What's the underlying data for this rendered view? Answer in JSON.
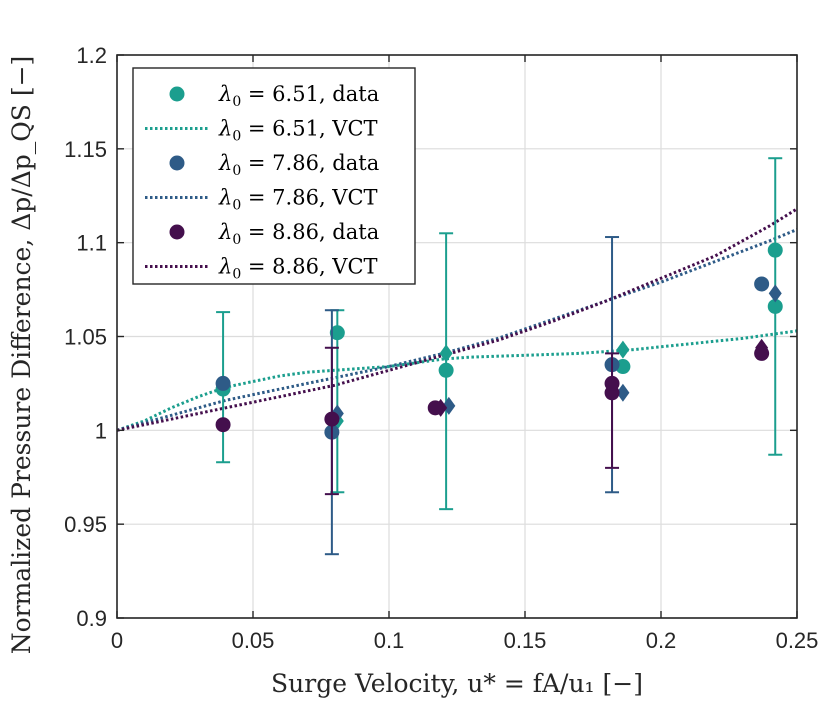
{
  "chart_data": {
    "type": "scatter",
    "xlabel": "Surge Velocity, u* = fA/u₁ [−]",
    "ylabel": "Normalized Pressure Difference, Δp/Δp_QS [−]",
    "xlim": [
      0,
      0.25
    ],
    "ylim": [
      0.9,
      1.2
    ],
    "xticks": [
      0,
      0.05,
      0.1,
      0.15,
      0.2,
      0.25
    ],
    "yticks": [
      0.9,
      0.95,
      1.0,
      1.05,
      1.1,
      1.15,
      1.2
    ],
    "xtick_labels": [
      "0",
      "0.05",
      "0.1",
      "0.15",
      "0.2",
      "0.25"
    ],
    "ytick_labels": [
      "0.9",
      "0.95",
      "1",
      "1.05",
      "1.1",
      "1.15",
      "1.2"
    ],
    "grid": true,
    "legend_position": "top-left",
    "series": [
      {
        "name": "λ0 = 6.51, data",
        "color": "#1b9e8e",
        "circles": [
          [
            0.039,
            1.022
          ],
          [
            0.081,
            1.052
          ],
          [
            0.121,
            1.032
          ],
          [
            0.186,
            1.034
          ],
          [
            0.242,
            1.066
          ],
          [
            0.242,
            1.096
          ]
        ],
        "diamonds": [
          [
            0.081,
            1.005
          ],
          [
            0.121,
            1.041
          ],
          [
            0.186,
            1.043
          ]
        ],
        "errorbars": [
          [
            0.039,
            0.983,
            1.063
          ],
          [
            0.081,
            0.967,
            1.064
          ],
          [
            0.121,
            0.958,
            1.105
          ],
          [
            0.242,
            0.987,
            1.145
          ]
        ]
      },
      {
        "name": "λ0 = 6.51, VCT",
        "color": "#1b9e8e",
        "line": [
          [
            0,
            1.0
          ],
          [
            0.01,
            1.005
          ],
          [
            0.02,
            1.012
          ],
          [
            0.03,
            1.018
          ],
          [
            0.04,
            1.023
          ],
          [
            0.05,
            1.026
          ],
          [
            0.06,
            1.029
          ],
          [
            0.07,
            1.031
          ],
          [
            0.08,
            1.032
          ],
          [
            0.09,
            1.033
          ],
          [
            0.1,
            1.034
          ],
          [
            0.11,
            1.036
          ],
          [
            0.12,
            1.038
          ],
          [
            0.13,
            1.039
          ],
          [
            0.15,
            1.04
          ],
          [
            0.17,
            1.041
          ],
          [
            0.19,
            1.043
          ],
          [
            0.21,
            1.046
          ],
          [
            0.23,
            1.049
          ],
          [
            0.25,
            1.053
          ]
        ]
      },
      {
        "name": "λ0 = 7.86, data",
        "color": "#2e5b87",
        "circles": [
          [
            0.039,
            1.025
          ],
          [
            0.079,
            0.999
          ],
          [
            0.182,
            1.035
          ],
          [
            0.237,
            1.078
          ]
        ],
        "diamonds": [
          [
            0.081,
            1.009
          ],
          [
            0.122,
            1.013
          ],
          [
            0.186,
            1.02
          ],
          [
            0.242,
            1.073
          ]
        ],
        "errorbars": [
          [
            0.079,
            0.934,
            1.064
          ],
          [
            0.182,
            0.967,
            1.103
          ]
        ]
      },
      {
        "name": "λ0 = 7.86, VCT",
        "color": "#2e5b87",
        "line": [
          [
            0,
            1.0
          ],
          [
            0.02,
            1.008
          ],
          [
            0.04,
            1.016
          ],
          [
            0.06,
            1.022
          ],
          [
            0.08,
            1.028
          ],
          [
            0.1,
            1.034
          ],
          [
            0.12,
            1.041
          ],
          [
            0.14,
            1.049
          ],
          [
            0.16,
            1.059
          ],
          [
            0.18,
            1.069
          ],
          [
            0.2,
            1.079
          ],
          [
            0.22,
            1.09
          ],
          [
            0.24,
            1.101
          ],
          [
            0.25,
            1.107
          ]
        ]
      },
      {
        "name": "λ0 = 8.86, data",
        "color": "#440f4d",
        "circles": [
          [
            0.039,
            1.003
          ],
          [
            0.079,
            1.006
          ],
          [
            0.117,
            1.012
          ],
          [
            0.182,
            1.02
          ],
          [
            0.182,
            1.025
          ],
          [
            0.237,
            1.041
          ]
        ],
        "diamonds": [
          [
            0.119,
            1.012
          ],
          [
            0.237,
            1.044
          ]
        ],
        "errorbars": [
          [
            0.079,
            0.966,
            1.044
          ],
          [
            0.182,
            0.98,
            1.041
          ]
        ]
      },
      {
        "name": "λ0 = 8.86, VCT",
        "color": "#440f4d",
        "line": [
          [
            0,
            1.0
          ],
          [
            0.02,
            1.006
          ],
          [
            0.04,
            1.012
          ],
          [
            0.06,
            1.018
          ],
          [
            0.08,
            1.024
          ],
          [
            0.1,
            1.032
          ],
          [
            0.12,
            1.04
          ],
          [
            0.14,
            1.048
          ],
          [
            0.16,
            1.058
          ],
          [
            0.18,
            1.069
          ],
          [
            0.2,
            1.081
          ],
          [
            0.22,
            1.093
          ],
          [
            0.24,
            1.109
          ],
          [
            0.25,
            1.118
          ]
        ]
      }
    ],
    "legend": [
      {
        "label_lhs": "λ",
        "label_sub": "0",
        "label_rhs": " = 6.51, data",
        "marker": "circle",
        "color": "#1b9e8e"
      },
      {
        "label_lhs": "λ",
        "label_sub": "0",
        "label_rhs": " = 6.51, VCT",
        "marker": "line",
        "color": "#1b9e8e"
      },
      {
        "label_lhs": "λ",
        "label_sub": "0",
        "label_rhs": " = 7.86, data",
        "marker": "circle",
        "color": "#2e5b87"
      },
      {
        "label_lhs": "λ",
        "label_sub": "0",
        "label_rhs": " = 7.86, VCT",
        "marker": "line",
        "color": "#2e5b87"
      },
      {
        "label_lhs": "λ",
        "label_sub": "0",
        "label_rhs": " = 8.86, data",
        "marker": "circle",
        "color": "#440f4d"
      },
      {
        "label_lhs": "λ",
        "label_sub": "0",
        "label_rhs": " = 8.86, VCT",
        "marker": "line",
        "color": "#440f4d"
      }
    ]
  }
}
